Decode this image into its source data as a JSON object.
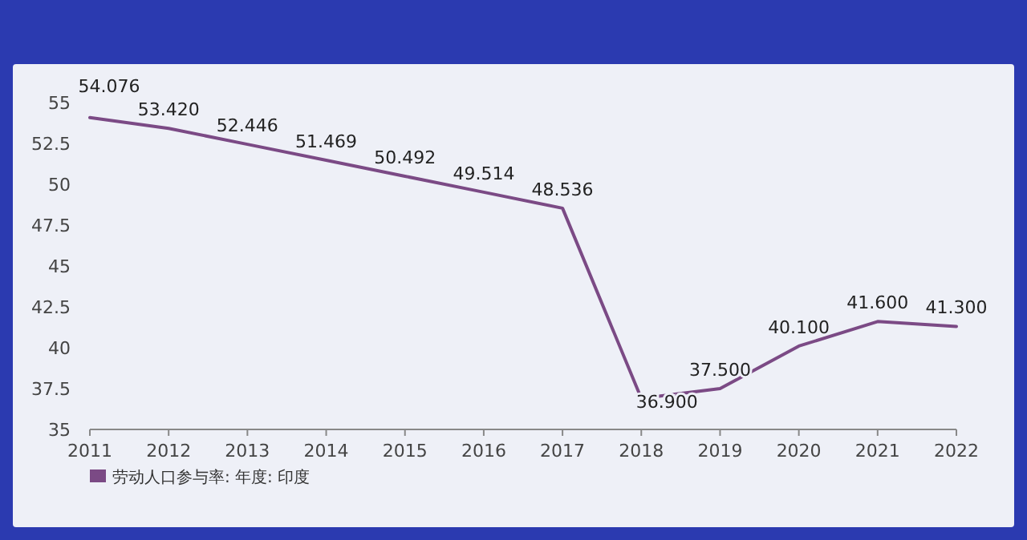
{
  "chart_data": {
    "type": "line",
    "categories": [
      "2011",
      "2012",
      "2013",
      "2014",
      "2015",
      "2016",
      "2017",
      "2018",
      "2019",
      "2020",
      "2021",
      "2022"
    ],
    "series": [
      {
        "name": "劳动人口参与率: 年度: 印度",
        "color": "#7b4a85",
        "values": [
          54.076,
          53.42,
          52.446,
          51.469,
          50.492,
          49.514,
          48.536,
          36.9,
          37.5,
          40.1,
          41.6,
          41.3
        ],
        "value_labels": [
          "54.076",
          "53.420",
          "52.446",
          "51.469",
          "50.492",
          "49.514",
          "48.536",
          "36.900",
          "37.500",
          "40.100",
          "41.600",
          "41.300"
        ]
      }
    ],
    "ylim": [
      35,
      55
    ],
    "yticks": [
      35,
      37.5,
      40,
      42.5,
      45,
      47.5,
      50,
      52.5,
      55
    ],
    "legend": "bottom left",
    "marker": "none",
    "grid": false,
    "line_style": "solid"
  }
}
